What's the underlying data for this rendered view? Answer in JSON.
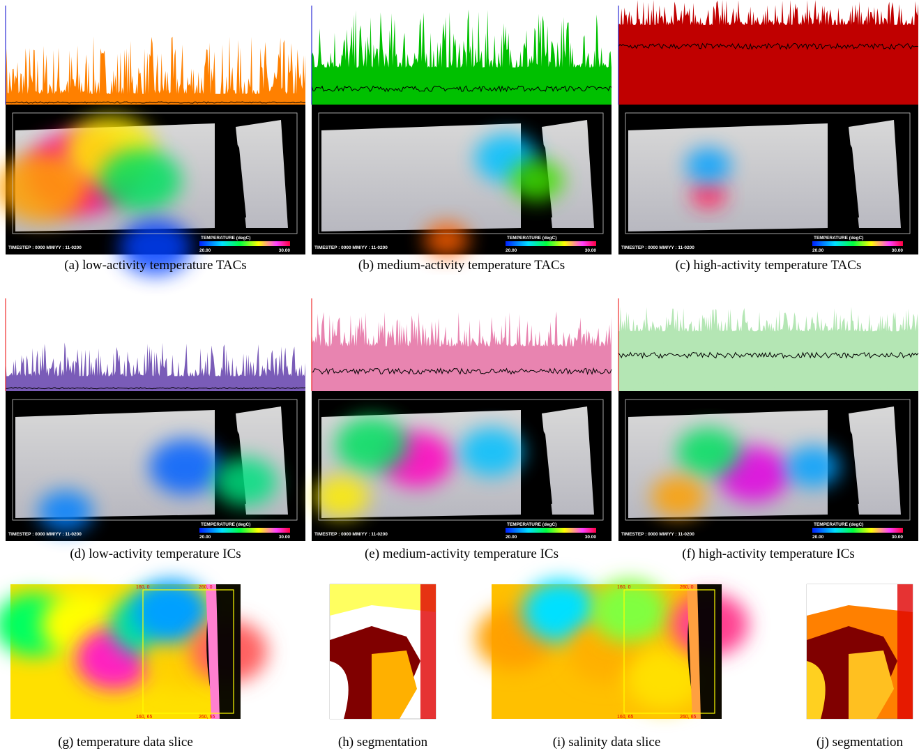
{
  "panels": [
    {
      "caption": "(a) low-activity temperature TACs",
      "timestep": "TIMESTEP : 0000   MM/YY : 11-0200",
      "legend_title": "TEMPERATURE (degC)",
      "legend_min": "20.00",
      "legend_max": "30.00"
    },
    {
      "caption": "(b) medium-activity temperature TACs",
      "timestep": "TIMESTEP : 0000   MM/YY : 11-0200",
      "legend_title": "TEMPERATURE (degC)",
      "legend_min": "20.00",
      "legend_max": "30.00"
    },
    {
      "caption": "(c) high-activity temperature TACs",
      "timestep": "TIMESTEP : 0000   MM/YY : 11-0200",
      "legend_title": "TEMPERATURE (degC)",
      "legend_min": "20.00",
      "legend_max": "30.00"
    },
    {
      "caption": "(d) low-activity temperature ICs",
      "timestep": "TIMESTEP : 0000   MM/YY : 11-0200",
      "legend_title": "TEMPERATURE (degC)",
      "legend_min": "20.00",
      "legend_max": "30.00"
    },
    {
      "caption": "(e) medium-activity temperature ICs",
      "timestep": "TIMESTEP : 0000   MM/YY : 11-0200",
      "legend_title": "TEMPERATURE (degC)",
      "legend_min": "20.00",
      "legend_max": "30.00"
    },
    {
      "caption": "(f) high-activity temperature ICs",
      "timestep": "TIMESTEP : 0000   MM/YY : 11-0200",
      "legend_title": "TEMPERATURE (degC)",
      "legend_min": "20.00",
      "legend_max": "30.00"
    }
  ],
  "slices": [
    {
      "caption": "(g) temperature data slice",
      "labels": [
        "160, 0",
        "260, 0",
        "160, 65",
        "260, 65"
      ]
    },
    {
      "caption": "(i) salinity data slice",
      "labels": [
        "160, 0",
        "260, 0",
        "160, 65",
        "260, 65"
      ]
    }
  ],
  "segmentations": [
    {
      "caption": "(h) segmentation"
    },
    {
      "caption": "(j) segmentation"
    }
  ]
}
